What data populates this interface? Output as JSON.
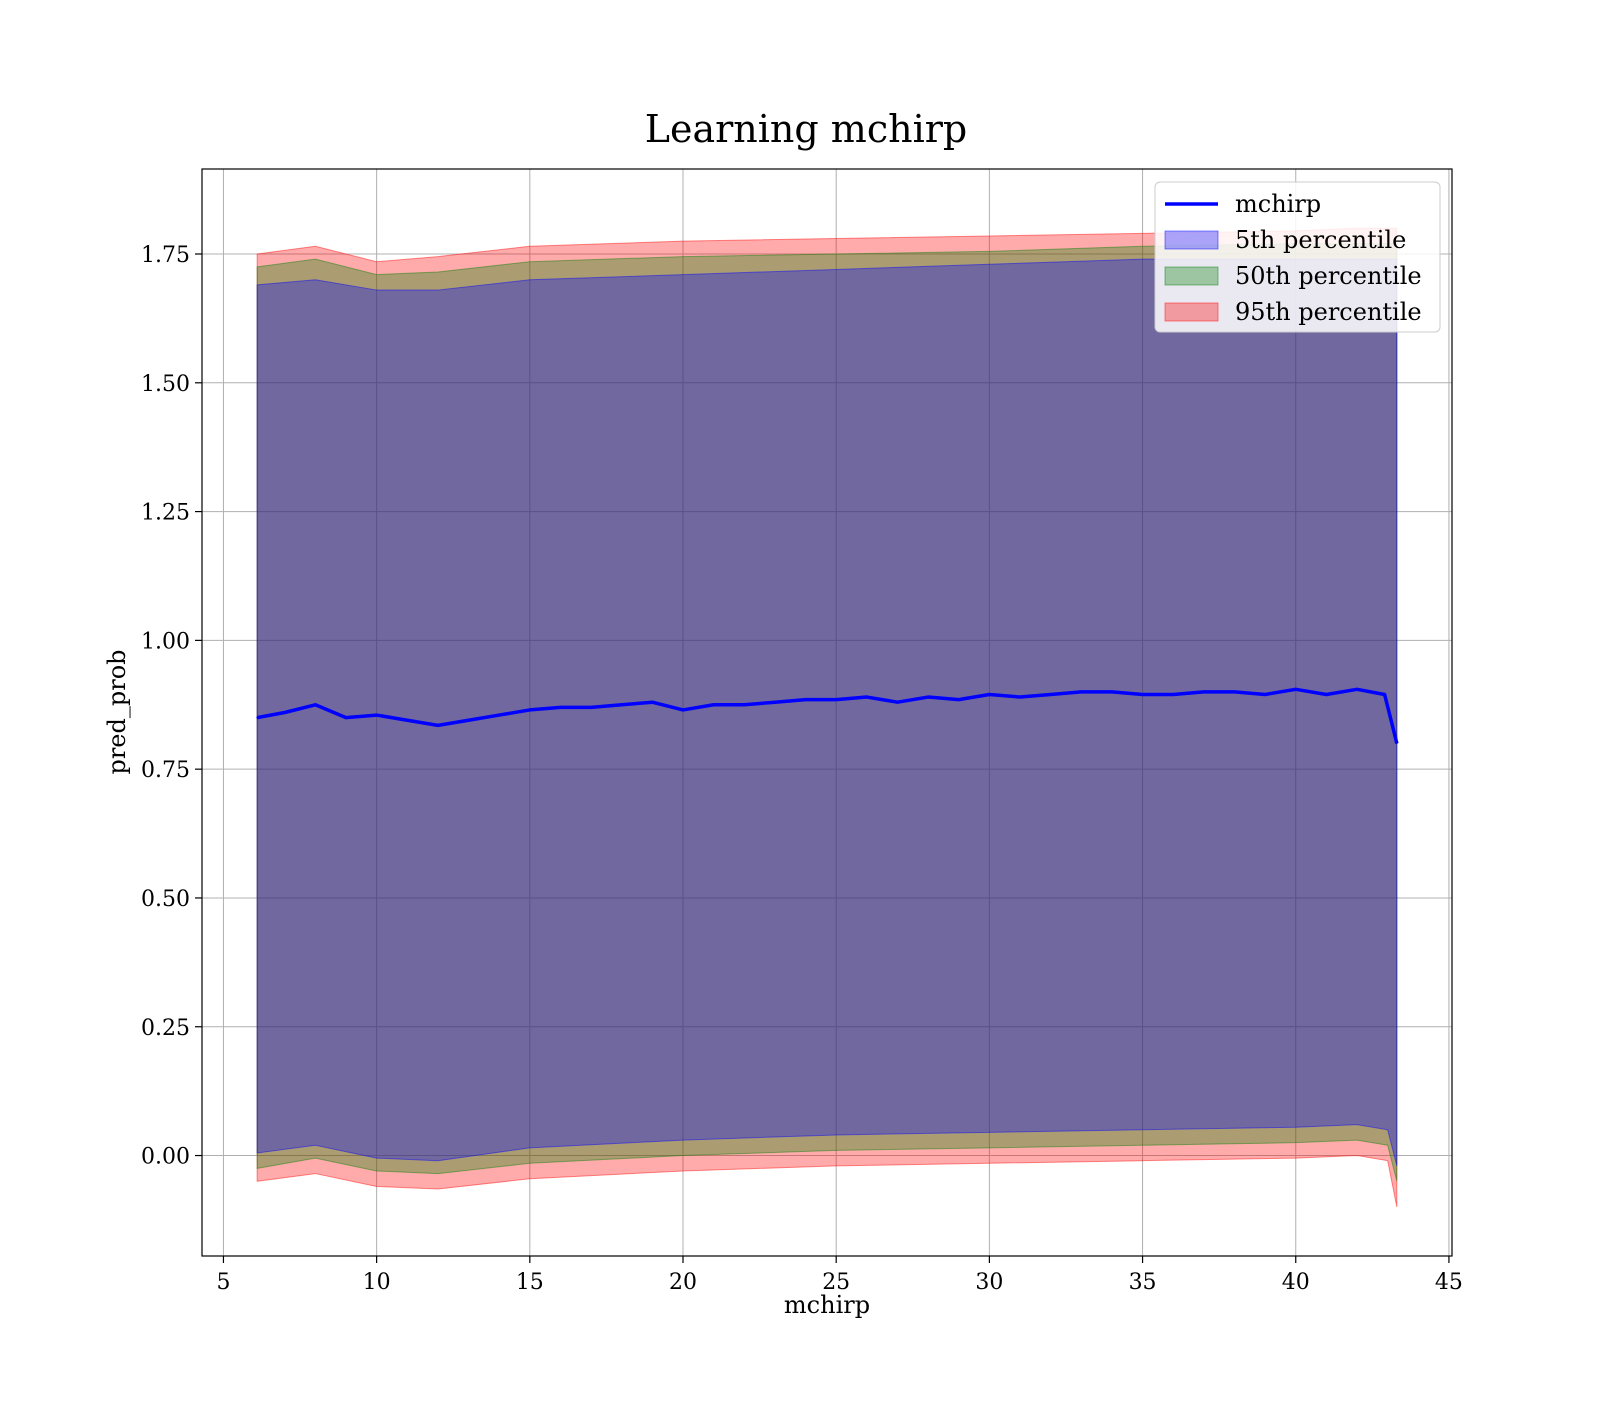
{
  "chart_data": {
    "type": "line",
    "title": "Learning mchirp",
    "xlabel": "mchirp",
    "ylabel": "pred_prob",
    "xlim": [
      4.3,
      45.1
    ],
    "ylim": [
      -0.195,
      1.915
    ],
    "xticks": [
      5,
      10,
      15,
      20,
      25,
      30,
      35,
      40,
      45
    ],
    "yticks": [
      0.0,
      0.25,
      0.5,
      0.75,
      1.0,
      1.25,
      1.5,
      1.75
    ],
    "ytick_labels": [
      "0.00",
      "0.25",
      "0.50",
      "0.75",
      "1.00",
      "1.25",
      "1.50",
      "1.75"
    ],
    "grid": true,
    "legend_position": "top-right",
    "colors": {
      "line": "#0000ff",
      "band_5th": "#0000ff",
      "band_50th": "#008000",
      "band_95th": "#ff0000"
    },
    "series": [
      {
        "name": "mchirp",
        "kind": "line",
        "x": [
          6.1,
          7,
          8,
          9,
          10,
          11,
          12,
          13,
          14,
          15,
          16,
          17,
          18,
          19,
          20,
          21,
          22,
          23,
          24,
          25,
          26,
          27,
          28,
          29,
          30,
          31,
          32,
          33,
          34,
          35,
          36,
          37,
          38,
          39,
          40,
          41,
          42,
          42.9,
          43.3
        ],
        "values": [
          0.85,
          0.86,
          0.875,
          0.85,
          0.855,
          0.845,
          0.835,
          0.845,
          0.855,
          0.865,
          0.87,
          0.87,
          0.875,
          0.88,
          0.865,
          0.875,
          0.875,
          0.88,
          0.885,
          0.885,
          0.89,
          0.88,
          0.89,
          0.885,
          0.895,
          0.89,
          0.895,
          0.9,
          0.9,
          0.895,
          0.895,
          0.9,
          0.9,
          0.895,
          0.905,
          0.895,
          0.905,
          0.895,
          0.8
        ]
      },
      {
        "name": "5th percentile",
        "kind": "band",
        "x": [
          6.1,
          8,
          10,
          12,
          15,
          20,
          25,
          30,
          35,
          40,
          42,
          43.0,
          43.3
        ],
        "lower": [
          0.005,
          0.02,
          -0.005,
          -0.01,
          0.015,
          0.03,
          0.04,
          0.045,
          0.05,
          0.055,
          0.06,
          0.05,
          -0.02
        ],
        "upper": [
          1.69,
          1.7,
          1.68,
          1.68,
          1.7,
          1.71,
          1.72,
          1.73,
          1.74,
          1.74,
          1.74,
          1.74,
          1.74
        ]
      },
      {
        "name": "50th percentile",
        "kind": "band",
        "x": [
          6.1,
          8,
          10,
          12,
          15,
          20,
          25,
          30,
          35,
          40,
          42,
          43.0,
          43.3
        ],
        "lower": [
          -0.025,
          -0.005,
          -0.03,
          -0.035,
          -0.015,
          0.0,
          0.01,
          0.015,
          0.02,
          0.025,
          0.03,
          0.02,
          -0.05
        ],
        "upper": [
          1.725,
          1.74,
          1.71,
          1.715,
          1.735,
          1.745,
          1.75,
          1.755,
          1.765,
          1.77,
          1.77,
          1.77,
          1.77
        ]
      },
      {
        "name": "95th percentile",
        "kind": "band",
        "x": [
          6.1,
          8,
          10,
          12,
          15,
          20,
          25,
          30,
          35,
          40,
          42,
          43.0,
          43.3
        ],
        "lower": [
          -0.05,
          -0.035,
          -0.06,
          -0.065,
          -0.045,
          -0.03,
          -0.02,
          -0.015,
          -0.01,
          -0.005,
          0.0,
          -0.01,
          -0.1
        ],
        "upper": [
          1.75,
          1.765,
          1.735,
          1.745,
          1.765,
          1.775,
          1.78,
          1.785,
          1.79,
          1.795,
          1.8,
          1.8,
          1.8
        ]
      }
    ]
  }
}
